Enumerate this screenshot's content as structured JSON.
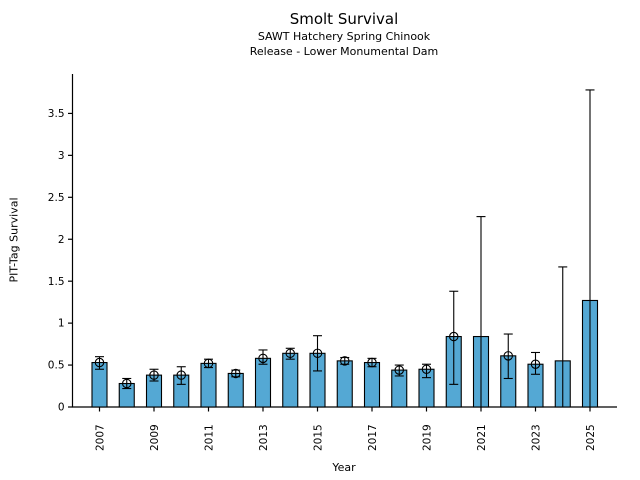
{
  "chart_data": {
    "type": "bar",
    "title": "Smolt Survival",
    "subtitle1": "SAWT Hatchery Spring Chinook",
    "subtitle2": "Release - Lower Monumental Dam",
    "xlabel": "Year",
    "ylabel": "PIT-Tag Survival",
    "ylim": [
      0,
      3.97
    ],
    "yticks": [
      0,
      0.5,
      1,
      1.5,
      2,
      2.5,
      3,
      3.5
    ],
    "xtick_labels": [
      "2007",
      "2009",
      "2011",
      "2013",
      "2015",
      "2017",
      "2019",
      "2021",
      "2023",
      "2025"
    ],
    "grid": false,
    "legend": "none",
    "bar_color": "#54A8D4",
    "bar_edge_color": "#000000",
    "errorbar_color": "#000000",
    "series": [
      {
        "year": 2007,
        "value": 0.53,
        "ci_low": 0.45,
        "ci_high": 0.6,
        "marker": true
      },
      {
        "year": 2008,
        "value": 0.28,
        "ci_low": 0.22,
        "ci_high": 0.34,
        "marker": true
      },
      {
        "year": 2009,
        "value": 0.38,
        "ci_low": 0.31,
        "ci_high": 0.45,
        "marker": true
      },
      {
        "year": 2010,
        "value": 0.38,
        "ci_low": 0.27,
        "ci_high": 0.48,
        "marker": true
      },
      {
        "year": 2011,
        "value": 0.52,
        "ci_low": 0.47,
        "ci_high": 0.57,
        "marker": true
      },
      {
        "year": 2012,
        "value": 0.4,
        "ci_low": 0.36,
        "ci_high": 0.44,
        "marker": true
      },
      {
        "year": 2013,
        "value": 0.58,
        "ci_low": 0.51,
        "ci_high": 0.68,
        "marker": true
      },
      {
        "year": 2014,
        "value": 0.64,
        "ci_low": 0.57,
        "ci_high": 0.7,
        "marker": true
      },
      {
        "year": 2015,
        "value": 0.64,
        "ci_low": 0.43,
        "ci_high": 0.85,
        "marker": true
      },
      {
        "year": 2016,
        "value": 0.55,
        "ci_low": 0.51,
        "ci_high": 0.59,
        "marker": true
      },
      {
        "year": 2017,
        "value": 0.53,
        "ci_low": 0.48,
        "ci_high": 0.58,
        "marker": true
      },
      {
        "year": 2018,
        "value": 0.44,
        "ci_low": 0.37,
        "ci_high": 0.5,
        "marker": true
      },
      {
        "year": 2019,
        "value": 0.45,
        "ci_low": 0.35,
        "ci_high": 0.51,
        "marker": true
      },
      {
        "year": 2020,
        "value": 0.84,
        "ci_low": 0.27,
        "ci_high": 1.38,
        "marker": true
      },
      {
        "year": 2021,
        "value": 0.84,
        "ci_low": 0.0,
        "ci_high": 2.27,
        "marker": false
      },
      {
        "year": 2022,
        "value": 0.61,
        "ci_low": 0.34,
        "ci_high": 0.87,
        "marker": true
      },
      {
        "year": 2023,
        "value": 0.51,
        "ci_low": 0.39,
        "ci_high": 0.65,
        "marker": true
      },
      {
        "year": 2024,
        "value": 0.55,
        "ci_low": 0.0,
        "ci_high": 1.67,
        "marker": false
      },
      {
        "year": 2025,
        "value": 1.27,
        "ci_low": 0.0,
        "ci_high": 3.78,
        "marker": false
      }
    ]
  }
}
